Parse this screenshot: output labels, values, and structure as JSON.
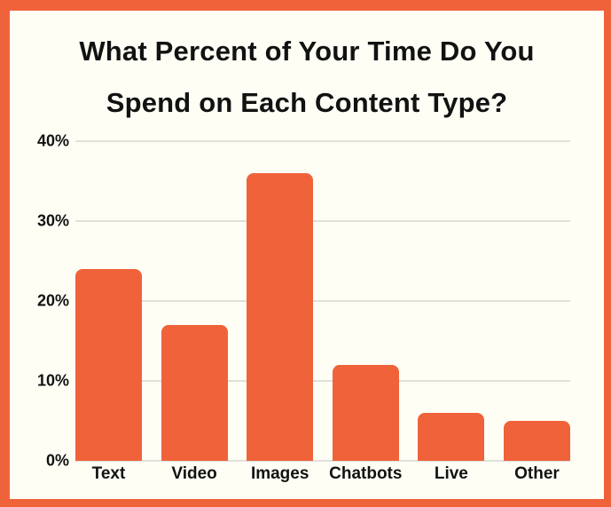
{
  "title": {
    "line1": "What Percent of Your Time Do You",
    "line2": "Spend on Each Content Type?"
  },
  "chart_data": {
    "type": "bar",
    "title": "What Percent of Your Time Do You Spend on Each Content Type?",
    "categories": [
      "Text",
      "Video",
      "Images",
      "Chatbots",
      "Live",
      "Other"
    ],
    "values": [
      24,
      17,
      36,
      12,
      6,
      5
    ],
    "unit": "%",
    "xlabel": "",
    "ylabel": "",
    "ylim": [
      0,
      40
    ],
    "ytick_interval": 10,
    "yticks_top_to_bottom": [
      "40%",
      "30%",
      "20%",
      "10%",
      "0%"
    ],
    "grid": true,
    "legend": false,
    "bar_corner_radius": "rounded-top"
  },
  "colors": {
    "bar": "#F0633A",
    "frame_border": "#F0633A",
    "background": "#FFFEF5",
    "gridline": "#E1E1DB",
    "text": "#121212"
  }
}
